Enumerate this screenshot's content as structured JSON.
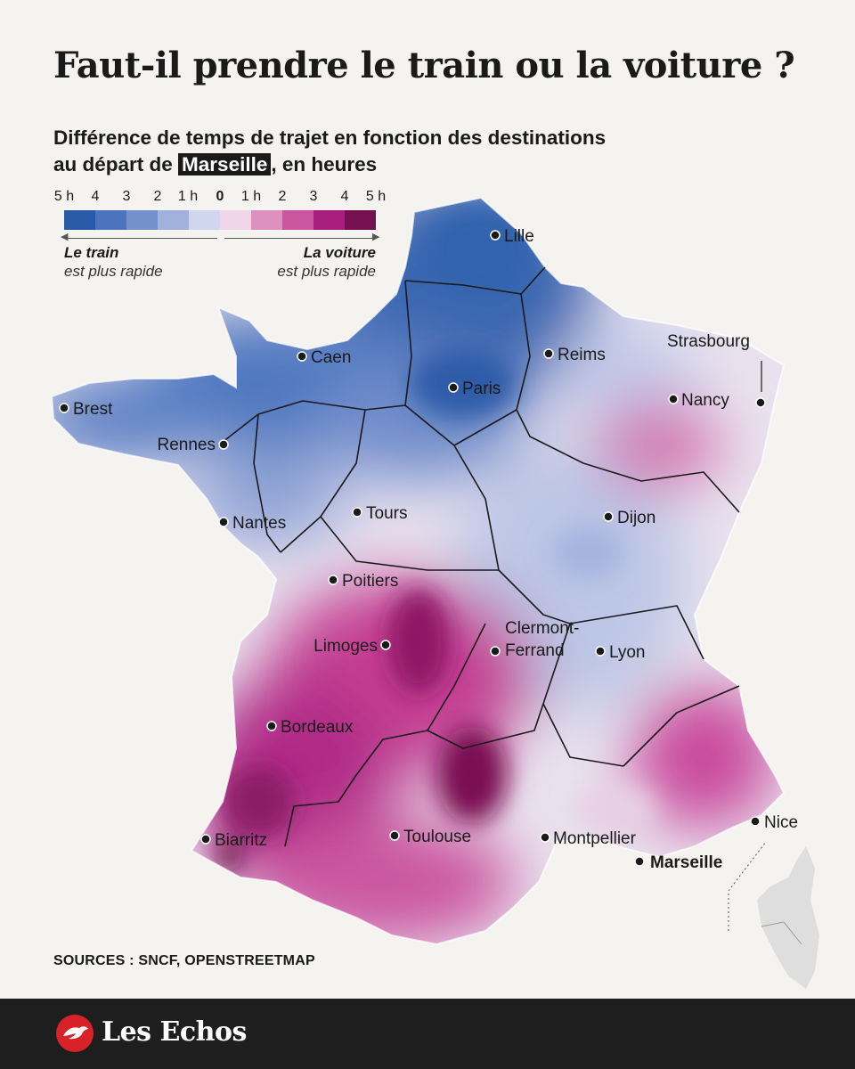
{
  "title": "Faut-il prendre le train ou la voiture ?",
  "subtitle": {
    "line1": "Différence de temps de trajet en fonction des destinations",
    "line2_pre": "au départ de",
    "line2_highlight": "Marseille",
    "line2_post": ", en heures"
  },
  "legend": {
    "ticks": [
      "5 h",
      "4",
      "3",
      "2",
      "1 h",
      "0",
      "1 h",
      "2",
      "3",
      "4",
      "5 h"
    ],
    "colors": [
      "#2a5aa6",
      "#4b74bd",
      "#7591cc",
      "#a1b1de",
      "#cfd6ee",
      "#f0d6e6",
      "#de90c0",
      "#cb56a0",
      "#a91f7e",
      "#76114f"
    ],
    "left_head": "Le train",
    "left_sub": "est plus rapide",
    "right_head": "La voiture",
    "right_sub": "est plus rapide"
  },
  "map": {
    "cities": [
      "Lille",
      "Caen",
      "Reims",
      "Strasbourg",
      "Paris",
      "Nancy",
      "Brest",
      "Rennes",
      "Nantes",
      "Tours",
      "Dijon",
      "Poitiers",
      "Clermont-",
      "Ferrand",
      "Lyon",
      "Limoges",
      "Bordeaux",
      "Biarritz",
      "Toulouse",
      "Montpellier",
      "Marseille",
      "Nice"
    ],
    "colors": {
      "train_fast": "#3a66b0",
      "neutral": "#e9e2ee",
      "car_fast": "#b02a86",
      "corsica": "#dedede"
    }
  },
  "sources": "SOURCES : SNCF, OPENSTREETMAP",
  "footer": {
    "brand": "Les Echos",
    "logo": "lesechos-logo-icon",
    "background": "#1e1e1e",
    "logo_color": "#d8222a"
  }
}
